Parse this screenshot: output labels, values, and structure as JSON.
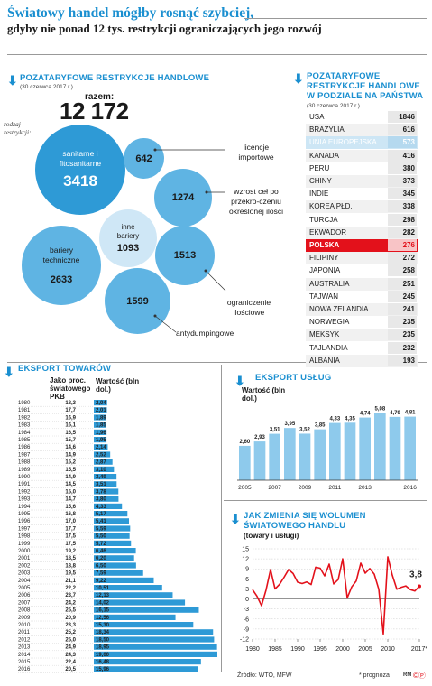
{
  "header": {
    "title": "Światowy handel mógłby rosnąć szybciej,",
    "subtitle": "gdyby nie ponad 12 tys. restrykcji ograniczających jego rozwój"
  },
  "restrictions": {
    "heading": "POZATARYFOWE RESTRYKCJE HANDLOWE",
    "date": "(30 czerwca 2017 r.)",
    "total_label": "razem:",
    "total_value": "12 172",
    "axis_label": "rodzaj restrykcji:",
    "types": [
      {
        "label": "sanitarne i fitosanitarne",
        "value": "3418"
      },
      {
        "label": "licencje importowe",
        "value": "642"
      },
      {
        "label": "wzrost ceł po przekro-czeniu określonej ilości",
        "value": "1274"
      },
      {
        "label": "inne bariery",
        "value": "1093"
      },
      {
        "label": "bariery techniczne",
        "value": "2633"
      },
      {
        "label": "ograniczenie ilościowe",
        "value": "1513"
      },
      {
        "label": "antydumpingowe",
        "value": "1599"
      }
    ],
    "colors": {
      "dark": "#2e9ad6",
      "mid": "#5fb4e3",
      "light": "#cfe7f6"
    }
  },
  "by_country": {
    "heading": "POZATARYFOWE RESTRYKCJE HANDLOWE W PODZIALE NA PAŃSTWA",
    "date": "(30 czerwca 2017 r.)",
    "rows": [
      {
        "name": "USA",
        "value": "1846"
      },
      {
        "name": "BRAZYLIA",
        "value": "616"
      },
      {
        "name": "UNIA EUROPEJSKA",
        "value": "573"
      },
      {
        "name": "KANADA",
        "value": "416"
      },
      {
        "name": "PERU",
        "value": "380"
      },
      {
        "name": "CHINY",
        "value": "373"
      },
      {
        "name": "INDIE",
        "value": "345"
      },
      {
        "name": "KOREA PŁD.",
        "value": "338"
      },
      {
        "name": "TURCJA",
        "value": "298"
      },
      {
        "name": "EKWADOR",
        "value": "282"
      },
      {
        "name": "POLSKA",
        "value": "276"
      },
      {
        "name": "FILIPINY",
        "value": "272"
      },
      {
        "name": "JAPONIA",
        "value": "258"
      },
      {
        "name": "AUSTRALIA",
        "value": "251"
      },
      {
        "name": "TAJWAN",
        "value": "245"
      },
      {
        "name": "NOWA ZELANDIA",
        "value": "241"
      },
      {
        "name": "NORWEGIA",
        "value": "235"
      },
      {
        "name": "MEKSYK",
        "value": "235"
      },
      {
        "name": "TAJLANDIA",
        "value": "232"
      },
      {
        "name": "ALBANIA",
        "value": "193"
      }
    ],
    "highlight_colors": {
      "ue": "#cde6f5",
      "pl": "#e3111b"
    }
  },
  "chart_data": [
    {
      "type": "bar",
      "title": "EKSPORT TOWARÓW",
      "col1_label": "Jako proc. światowego PKB",
      "col2_label": "Wartość (bln dol.)",
      "categories": [
        "1980",
        "1981",
        "1982",
        "1983",
        "1984",
        "1985",
        "1986",
        "1987",
        "1988",
        "1989",
        "1990",
        "1991",
        "1992",
        "1993",
        "1994",
        "1995",
        "1996",
        "1997",
        "1998",
        "1999",
        "2000",
        "2001",
        "2002",
        "2003",
        "2004",
        "2005",
        "2006",
        "2007",
        "2008",
        "2009",
        "2010",
        "2011",
        "2012",
        "2013",
        "2014",
        "2015",
        "2016"
      ],
      "pkb_pct": [
        "18,3",
        "17,7",
        "16,9",
        "16,1",
        "16,5",
        "15,7",
        "14,6",
        "14,9",
        "15,2",
        "15,5",
        "14,9",
        "14,5",
        "15,0",
        "14,7",
        "15,6",
        "16,8",
        "17,0",
        "17,7",
        "17,5",
        "17,5",
        "19,2",
        "18,5",
        "18,8",
        "19,5",
        "21,1",
        "22,2",
        "23,7",
        "24,2",
        "25,5",
        "20,9",
        "23,3",
        "25,2",
        "25,0",
        "24,9",
        "24,3",
        "22,4",
        "20,5"
      ],
      "values": [
        2.04,
        2.01,
        1.89,
        1.85,
        1.96,
        1.95,
        2.14,
        2.52,
        2.87,
        3.1,
        3.49,
        3.51,
        3.78,
        3.8,
        4.33,
        5.17,
        5.41,
        5.59,
        5.5,
        5.72,
        6.46,
        6.2,
        6.5,
        7.59,
        9.22,
        10.51,
        12.13,
        14.02,
        16.15,
        12.56,
        15.3,
        18.34,
        18.5,
        18.95,
        19.0,
        16.48,
        15.96
      ],
      "value_labels": [
        "2,04",
        "2,01",
        "1,89",
        "1,85",
        "1,96",
        "1,95",
        "2,14",
        "2,52",
        "2,87",
        "3,10",
        "3,49",
        "3,51",
        "3,78",
        "3,80",
        "4,33",
        "5,17",
        "5,41",
        "5,59",
        "5,50",
        "5,72",
        "6,46",
        "6,20",
        "6,50",
        "7,59",
        "9,22",
        "10,51",
        "12,13",
        "14,02",
        "16,15",
        "12,56",
        "15,30",
        "18,34",
        "18,50",
        "18,95",
        "19,00",
        "16,48",
        "15,96"
      ],
      "xlim": [
        0,
        19
      ]
    },
    {
      "type": "bar",
      "title": "EKSPORT USŁUG",
      "ylabel": "Wartość (bln dol.)",
      "categories": [
        "2005",
        "2006",
        "2007",
        "2008",
        "2009",
        "2010",
        "2011",
        "2012",
        "2013",
        "2014",
        "2015",
        "2016"
      ],
      "tick_labels": [
        "2005",
        "2007",
        "2009",
        "2011",
        "2013",
        "2016"
      ],
      "values": [
        2.6,
        2.93,
        3.51,
        3.95,
        3.52,
        3.85,
        4.33,
        4.35,
        4.74,
        5.08,
        4.79,
        4.81
      ],
      "value_labels": [
        "2,60",
        "2,93",
        "3,51",
        "3,95",
        "3,52",
        "3,85",
        "4,33",
        "4,35",
        "4,74",
        "5,08",
        "4,79",
        "4,81"
      ],
      "ylim": [
        0,
        5.6
      ]
    },
    {
      "type": "line",
      "title": "JAK ZMIENIA SIĘ WOLUMEN ŚWIATOWEGO HANDLU",
      "subtitle": "(towary i usługi)",
      "x": [
        1980,
        1981,
        1982,
        1983,
        1984,
        1985,
        1986,
        1987,
        1988,
        1989,
        1990,
        1991,
        1992,
        1993,
        1994,
        1995,
        1996,
        1997,
        1998,
        1999,
        2000,
        2001,
        2002,
        2003,
        2004,
        2005,
        2006,
        2007,
        2008,
        2009,
        2010,
        2011,
        2012,
        2013,
        2014,
        2015,
        2016,
        2017
      ],
      "y": [
        2.8,
        0.8,
        -2.0,
        2.7,
        8.8,
        3.0,
        4.4,
        6.5,
        8.8,
        7.6,
        5.0,
        4.6,
        5.1,
        4.3,
        9.5,
        9.2,
        6.9,
        10.4,
        4.5,
        5.8,
        12.0,
        0.3,
        3.6,
        5.4,
        10.7,
        7.7,
        9.1,
        7.4,
        2.9,
        -10.5,
        12.6,
        7.1,
        2.9,
        3.5,
        3.9,
        2.8,
        2.4,
        3.8
      ],
      "x_tick_labels": [
        "1980",
        "1985",
        "1990",
        "1995",
        "2000",
        "2005",
        "2010",
        "2017*"
      ],
      "y_tick_labels": [
        "15",
        "12",
        "9",
        "6",
        "3",
        "0",
        "-3",
        "-6",
        "-9",
        "-12"
      ],
      "ylim": [
        -12,
        15
      ],
      "end_label": "3,8",
      "line_color": "#e3111b"
    }
  ],
  "footer": {
    "source": "Źródło: WTO, MFW",
    "note": "* prognoza",
    "credit": "RM"
  }
}
